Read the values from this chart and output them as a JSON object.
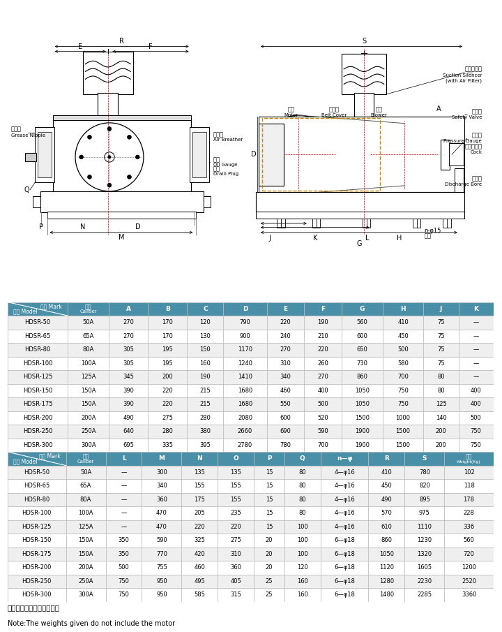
{
  "table1_header": [
    "记号 Mark",
    "口径\nCaliber",
    "A",
    "B",
    "C",
    "D",
    "E",
    "F",
    "G",
    "H",
    "J",
    "K"
  ],
  "table1_sub": [
    "型式 Model",
    "Caliber"
  ],
  "table1_data": [
    [
      "HDSR-50",
      "50A",
      "270",
      "170",
      "120",
      "790",
      "220",
      "190",
      "560",
      "410",
      "75",
      "—"
    ],
    [
      "HDSR-65",
      "65A",
      "270",
      "170",
      "130",
      "900",
      "240",
      "210",
      "600",
      "450",
      "75",
      "—"
    ],
    [
      "HDSR-80",
      "80A",
      "305",
      "195",
      "150",
      "1170",
      "270",
      "220",
      "650",
      "500",
      "75",
      "—"
    ],
    [
      "HDSR-100",
      "100A",
      "305",
      "195",
      "160",
      "1240",
      "310",
      "260",
      "730",
      "580",
      "75",
      "—"
    ],
    [
      "HDSR-125",
      "125A",
      "345",
      "200",
      "190",
      "1410",
      "340",
      "270",
      "860",
      "700",
      "80",
      "—"
    ],
    [
      "HDSR-150",
      "150A",
      "390",
      "220",
      "215",
      "1680",
      "460",
      "400",
      "1050",
      "750",
      "80",
      "400"
    ],
    [
      "HDSR-175",
      "150A",
      "390",
      "220",
      "215",
      "1680",
      "550",
      "500",
      "1050",
      "750",
      "125",
      "400"
    ],
    [
      "HDSR-200",
      "200A",
      "490",
      "275",
      "280",
      "2080",
      "600",
      "520",
      "1500",
      "1000",
      "140",
      "500"
    ],
    [
      "HDSR-250",
      "250A",
      "640",
      "280",
      "380",
      "2660",
      "690",
      "590",
      "1900",
      "1500",
      "200",
      "750"
    ],
    [
      "HDSR-300",
      "300A",
      "695",
      "335",
      "395",
      "2780",
      "780",
      "700",
      "1900",
      "1500",
      "200",
      "750"
    ]
  ],
  "table2_header": [
    "记号 Mark",
    "口径\nCaliber",
    "L",
    "M",
    "N",
    "O",
    "P",
    "Q",
    "n—φ",
    "R",
    "S",
    "重量\nWeight(Kg)"
  ],
  "table2_sub": [
    "型式 Model",
    "Caliber"
  ],
  "table2_data": [
    [
      "HDSR-50",
      "50A",
      "—",
      "300",
      "135",
      "135",
      "15",
      "80",
      "4—φ16",
      "410",
      "780",
      "102"
    ],
    [
      "HDSR-65",
      "65A",
      "—",
      "340",
      "155",
      "155",
      "15",
      "80",
      "4—φ16",
      "450",
      "820",
      "118"
    ],
    [
      "HDSR-80",
      "80A",
      "—",
      "360",
      "175",
      "155",
      "15",
      "80",
      "4—φ16",
      "490",
      "895",
      "178"
    ],
    [
      "HDSR-100",
      "100A",
      "—",
      "470",
      "205",
      "235",
      "15",
      "80",
      "4—φ16",
      "570",
      "975",
      "228"
    ],
    [
      "HDSR-125",
      "125A",
      "—",
      "470",
      "220",
      "220",
      "15",
      "100",
      "4—φ16",
      "610",
      "1110",
      "336"
    ],
    [
      "HDSR-150",
      "150A",
      "350",
      "590",
      "325",
      "275",
      "20",
      "100",
      "6—φ18",
      "860",
      "1230",
      "560"
    ],
    [
      "HDSR-175",
      "150A",
      "350",
      "770",
      "420",
      "310",
      "20",
      "100",
      "6—φ18",
      "1050",
      "1320",
      "720"
    ],
    [
      "HDSR-200",
      "200A",
      "500",
      "755",
      "460",
      "360",
      "20",
      "120",
      "6—φ18",
      "1120",
      "1605",
      "1200"
    ],
    [
      "HDSR-250",
      "250A",
      "750",
      "950",
      "495",
      "405",
      "25",
      "160",
      "6—φ18",
      "1280",
      "2230",
      "2520"
    ],
    [
      "HDSR-300",
      "300A",
      "750",
      "950",
      "585",
      "315",
      "25",
      "160",
      "6—φ18",
      "1480",
      "2285",
      "3360"
    ]
  ],
  "note_cn": "注：重量中不包括电机重量",
  "note_en": "Note:The weights given do not include the motor",
  "header_bg": "#4a8fa8",
  "alt_row_bg": "#efefef",
  "white_row_bg": "#ffffff",
  "border_color": "#bbbbbb",
  "lc": "#333333"
}
